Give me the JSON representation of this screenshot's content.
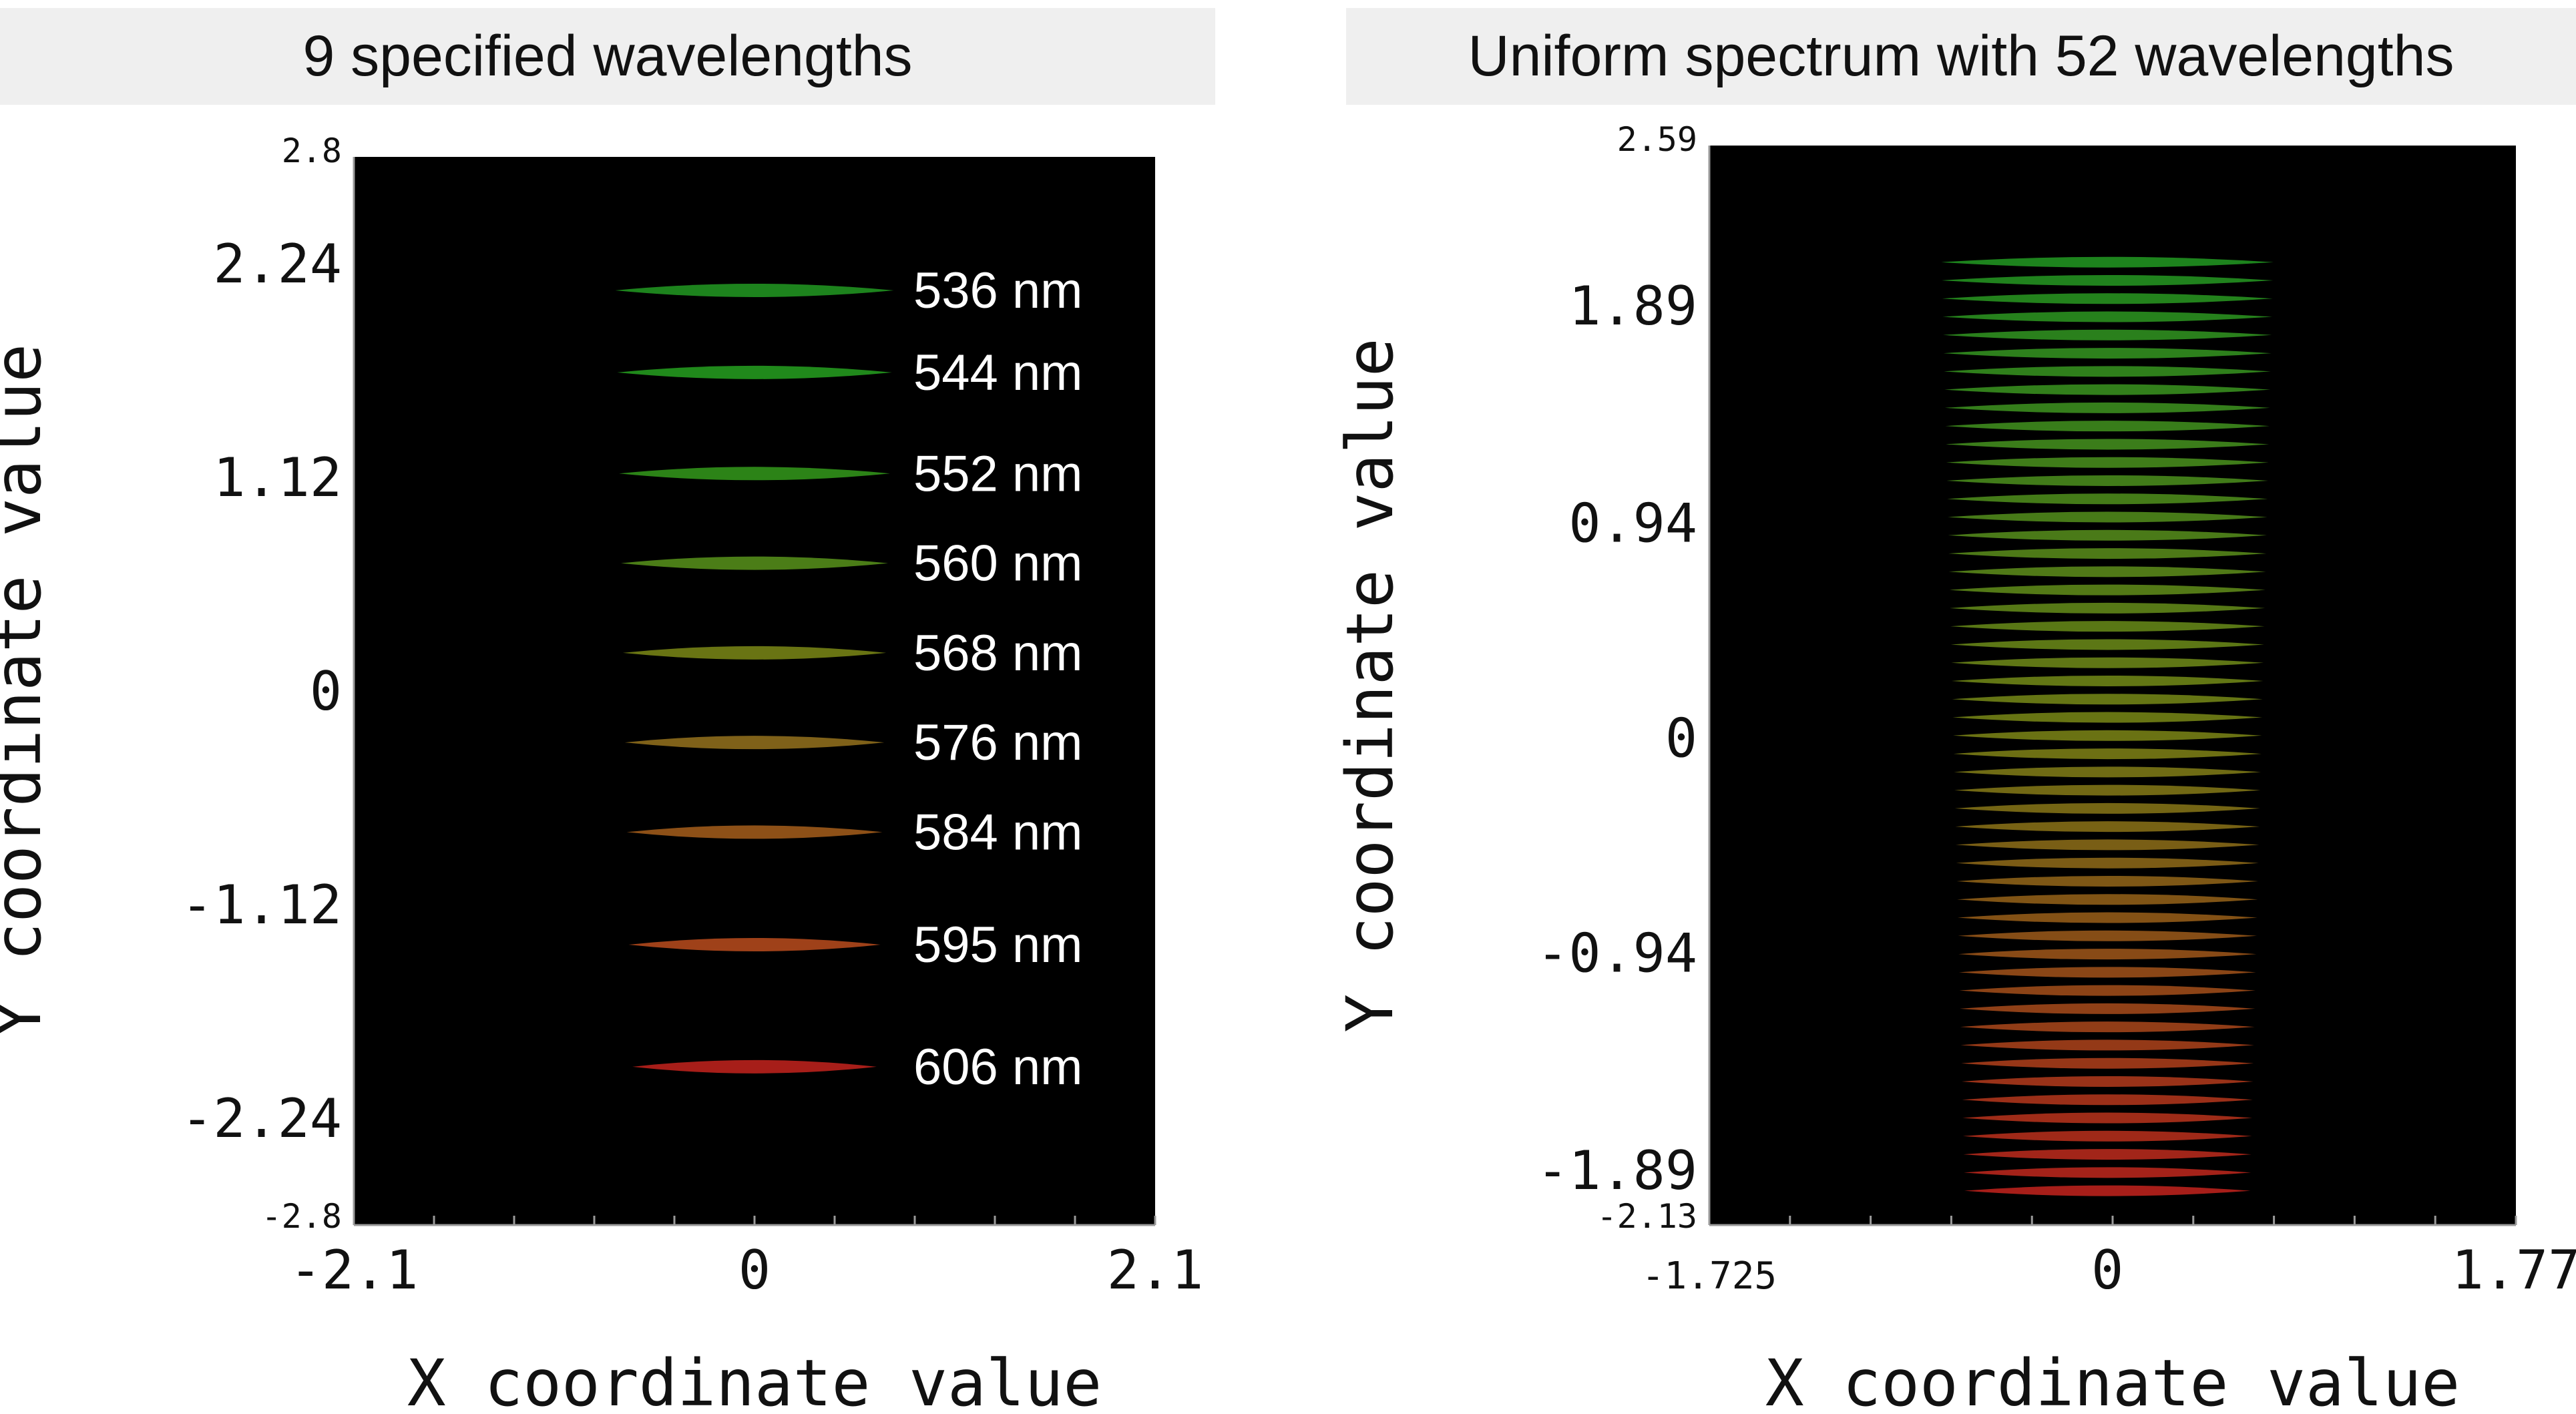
{
  "panels": {
    "left_title": "9 specified wavelengths",
    "right_title": "Uniform spectrum with 52 wavelengths"
  },
  "chart_data": [
    {
      "type": "scatter",
      "title": "9 specified wavelengths",
      "xlabel": "X coordinate value",
      "ylabel": "Y coordinate value",
      "xlim": [
        -2.1,
        2.1
      ],
      "ylim": [
        -2.8,
        2.8
      ],
      "x_ticks": [
        "-2.1",
        "0",
        "2.1"
      ],
      "y_ticks": [
        "2.8",
        "2.24",
        "1.12",
        "0",
        "-1.12",
        "-2.24",
        "-2.8"
      ],
      "background": "#000000",
      "series": [
        {
          "name": "536 nm",
          "y": 2.1,
          "x_range": [
            -0.73,
            0.73
          ],
          "color": "#1f8a1f"
        },
        {
          "name": "544 nm",
          "y": 1.67,
          "x_range": [
            -0.72,
            0.72
          ],
          "color": "#22901c"
        },
        {
          "name": "552 nm",
          "y": 1.14,
          "x_range": [
            -0.71,
            0.71
          ],
          "color": "#2e8a18"
        },
        {
          "name": "560 nm",
          "y": 0.67,
          "x_range": [
            -0.7,
            0.7
          ],
          "color": "#4f8418"
        },
        {
          "name": "568 nm",
          "y": 0.2,
          "x_range": [
            -0.69,
            0.69
          ],
          "color": "#6f7a14"
        },
        {
          "name": "576 nm",
          "y": -0.27,
          "x_range": [
            -0.68,
            0.68
          ],
          "color": "#86661a"
        },
        {
          "name": "584 nm",
          "y": -0.74,
          "x_range": [
            -0.67,
            0.67
          ],
          "color": "#955418"
        },
        {
          "name": "595 nm",
          "y": -1.33,
          "x_range": [
            -0.66,
            0.66
          ],
          "color": "#a8441a"
        },
        {
          "name": "606 nm",
          "y": -1.97,
          "x_range": [
            -0.64,
            0.64
          ],
          "color": "#b0201a"
        }
      ]
    },
    {
      "type": "scatter",
      "title": "Uniform spectrum with 52 wavelengths",
      "xlabel": "X coordinate value",
      "ylabel": "Y coordinate value",
      "xlim": [
        -1.725,
        1.77
      ],
      "ylim": [
        -2.13,
        2.59
      ],
      "x_ticks": [
        "-1.725",
        "0",
        "1.77"
      ],
      "y_ticks": [
        "2.59",
        "1.89",
        "0.94",
        "0",
        "-0.94",
        "-1.89",
        "-2.13"
      ],
      "background": "#000000",
      "line_count": 52,
      "y_range_of_lines": [
        -1.98,
        2.08
      ],
      "x_halfwidth_top": 0.72,
      "x_halfwidth_bottom": 0.62,
      "color_top": "#1f8a1f",
      "color_mid": "#6f7a14",
      "color_bottom": "#b0201a"
    }
  ]
}
